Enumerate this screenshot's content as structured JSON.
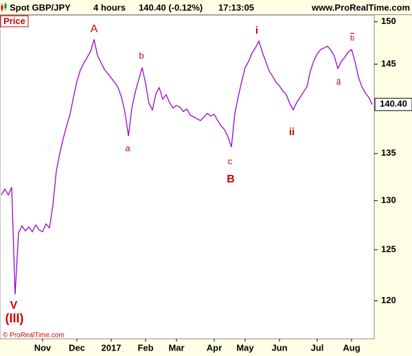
{
  "chart_data": {
    "type": "line",
    "title": "Spot GBP/JPY",
    "timeframe": "4 hours",
    "last_quote": "140.40 (-0.12%)",
    "time": "17:13:05",
    "website": "www.ProRealTime.com",
    "panel_label": "Price",
    "copyright": "© ProRealTime.com",
    "last_price_label": "140.40",
    "color": "#9900cc",
    "log_scale": true,
    "grid": false,
    "ylim": [
      116.4,
      150.8
    ],
    "yticks": [
      120,
      125,
      130,
      135,
      140,
      145,
      150
    ],
    "categories": [
      null,
      null,
      null,
      null,
      null,
      null,
      null,
      null,
      null,
      null,
      null,
      null,
      "Nov",
      null,
      null,
      null,
      null,
      null,
      null,
      null,
      null,
      null,
      "Dec",
      null,
      null,
      null,
      null,
      null,
      null,
      null,
      null,
      null,
      "2017",
      null,
      null,
      null,
      null,
      null,
      null,
      null,
      null,
      null,
      "Feb",
      null,
      null,
      null,
      null,
      null,
      null,
      null,
      null,
      "Mar",
      null,
      null,
      null,
      null,
      null,
      null,
      null,
      null,
      null,
      null,
      "Apr",
      null,
      null,
      null,
      null,
      null,
      null,
      null,
      null,
      "May",
      null,
      null,
      null,
      null,
      null,
      null,
      null,
      null,
      null,
      "Jun",
      null,
      null,
      null,
      null,
      null,
      null,
      null,
      null,
      null,
      null,
      "Jul",
      null,
      null,
      null,
      null,
      null,
      null,
      null,
      null,
      null,
      "Aug",
      null,
      null,
      null,
      null,
      null,
      null
    ],
    "values": [
      130.6,
      131.2,
      130.6,
      131.4,
      120.6,
      126.7,
      127.4,
      126.9,
      127.3,
      126.8,
      127.5,
      127.0,
      126.8,
      127.6,
      127.2,
      129.5,
      133.1,
      135.0,
      136.6,
      138.0,
      139.3,
      141.2,
      143.0,
      144.3,
      145.1,
      145.8,
      146.5,
      147.9,
      146.0,
      145.2,
      144.4,
      143.9,
      143.4,
      142.9,
      142.3,
      141.2,
      139.5,
      136.9,
      140.0,
      141.8,
      143.2,
      144.6,
      142.8,
      140.5,
      139.8,
      141.6,
      142.3,
      141.0,
      141.5,
      140.6,
      140.0,
      140.3,
      140.1,
      139.6,
      139.9,
      139.2,
      139.0,
      138.8,
      138.6,
      139.0,
      139.4,
      139.1,
      139.3,
      138.6,
      138.0,
      137.6,
      136.8,
      135.7,
      139.4,
      141.3,
      143.0,
      144.6,
      145.3,
      146.3,
      146.9,
      147.7,
      146.4,
      145.3,
      144.2,
      143.6,
      142.9,
      142.5,
      141.9,
      141.5,
      140.5,
      139.8,
      140.6,
      141.2,
      141.8,
      142.4,
      144.2,
      145.4,
      146.2,
      146.7,
      146.9,
      147.1,
      146.6,
      145.9,
      144.5,
      145.3,
      145.8,
      146.4,
      146.7,
      145.3,
      143.5,
      142.4,
      141.7,
      141.2,
      140.4
    ],
    "annotations": [
      "A",
      "a",
      "b",
      "c",
      "B",
      "i",
      "ii",
      "a",
      "b",
      "V",
      "(III)"
    ]
  }
}
